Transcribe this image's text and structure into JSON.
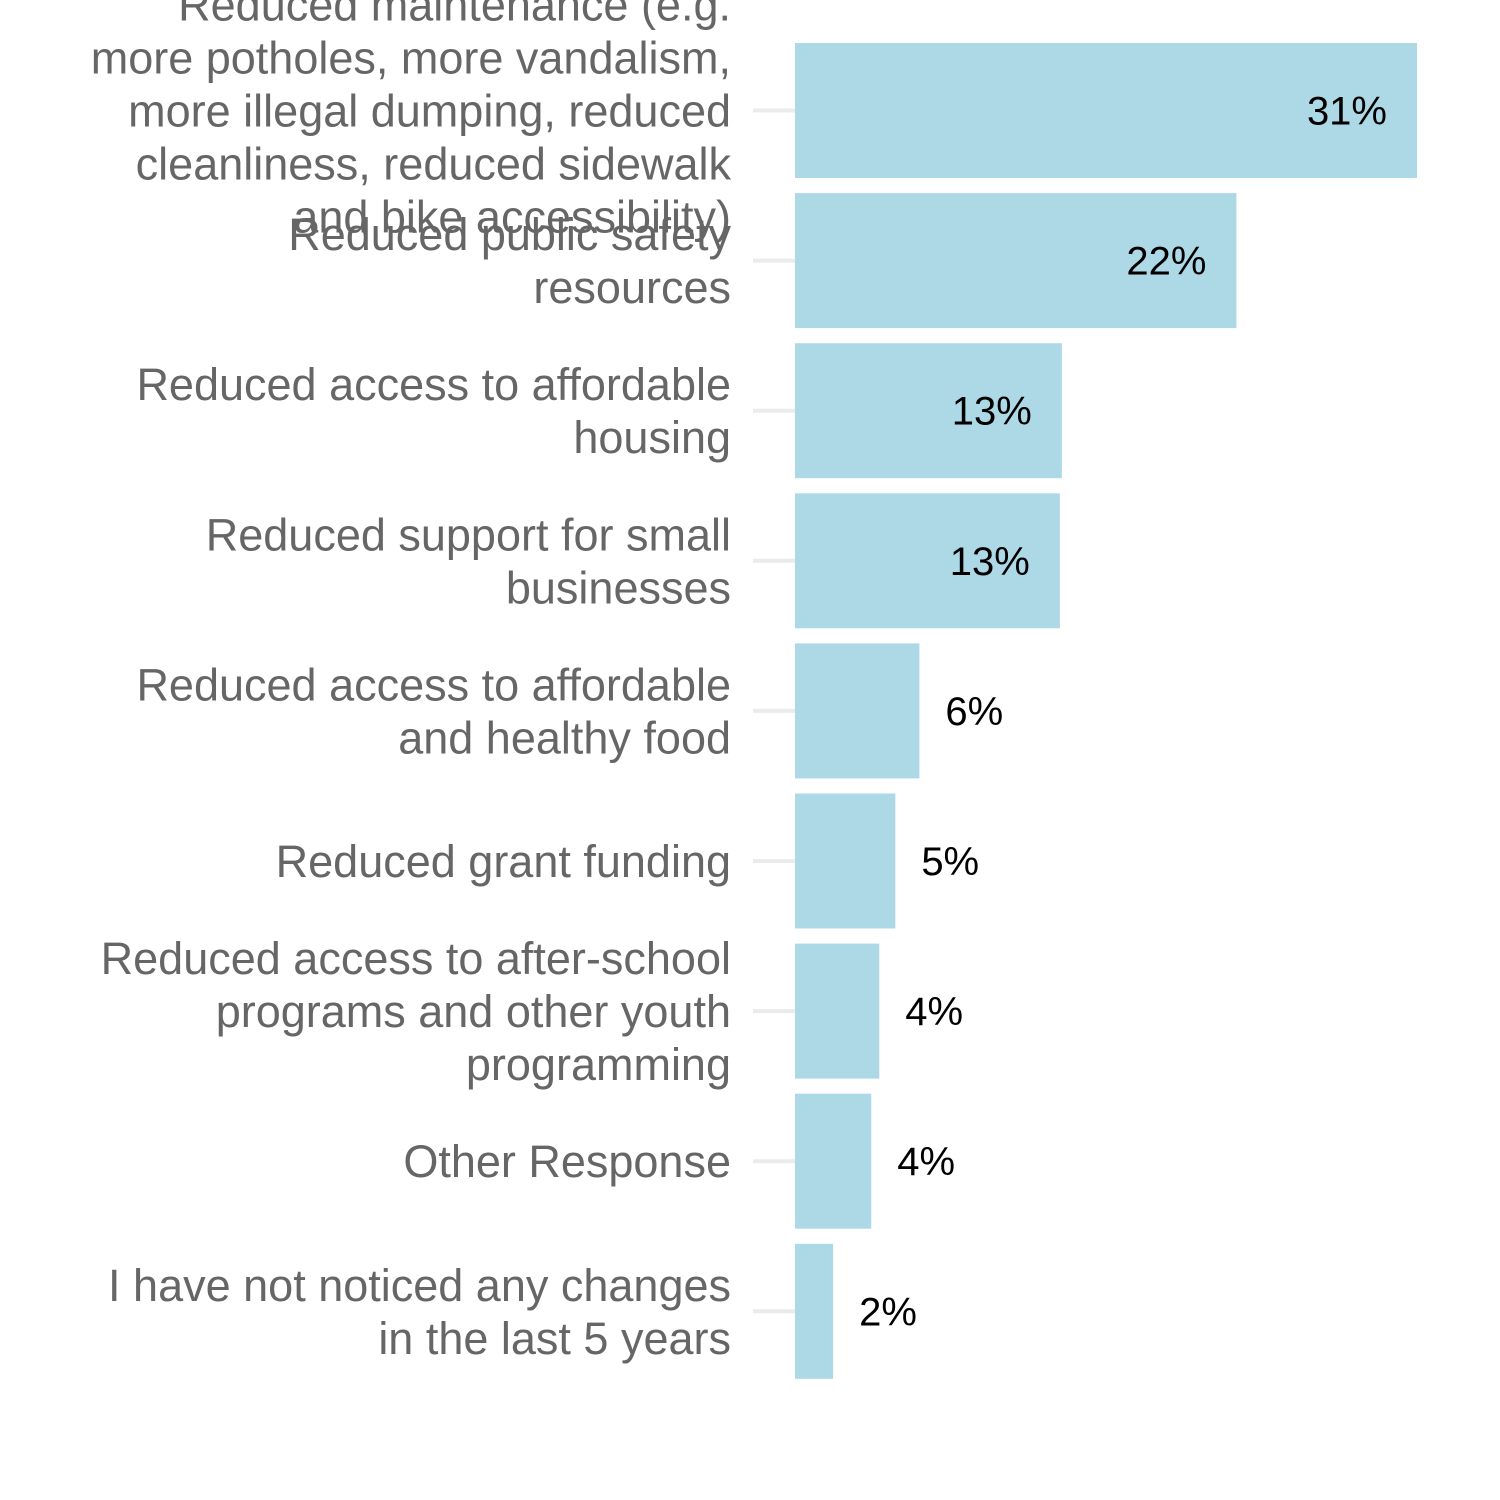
{
  "chart_data": {
    "type": "bar",
    "orientation": "horizontal",
    "title": "",
    "xlabel": "",
    "ylabel": "",
    "xlim": [
      0,
      31
    ],
    "grid": false,
    "bar_color": "#add8e6",
    "categories": [
      [
        "Reduced maintenance (e.g.",
        "more potholes, more vandalism,",
        "more illegal dumping, reduced",
        "cleanliness, reduced sidewalk",
        "and bike accessibility)"
      ],
      [
        "Reduced public safety",
        "resources"
      ],
      [
        "Reduced access to affordable",
        "housing"
      ],
      [
        "Reduced support for small",
        "businesses"
      ],
      [
        "Reduced access to affordable",
        "and healthy food"
      ],
      [
        "Reduced grant funding"
      ],
      [
        "Reduced access to after-school",
        "programs and other youth",
        "programming"
      ],
      [
        "Other Response"
      ],
      [
        "I have not noticed any changes",
        "in the last 5 years"
      ]
    ],
    "values": [
      31.0,
      22.0,
      13.3,
      13.2,
      6.2,
      5.0,
      4.2,
      3.8,
      1.9
    ],
    "labels": [
      "31%",
      "22%",
      "13%",
      "13%",
      "6%",
      "5%",
      "4%",
      "4%",
      "2%"
    ]
  }
}
